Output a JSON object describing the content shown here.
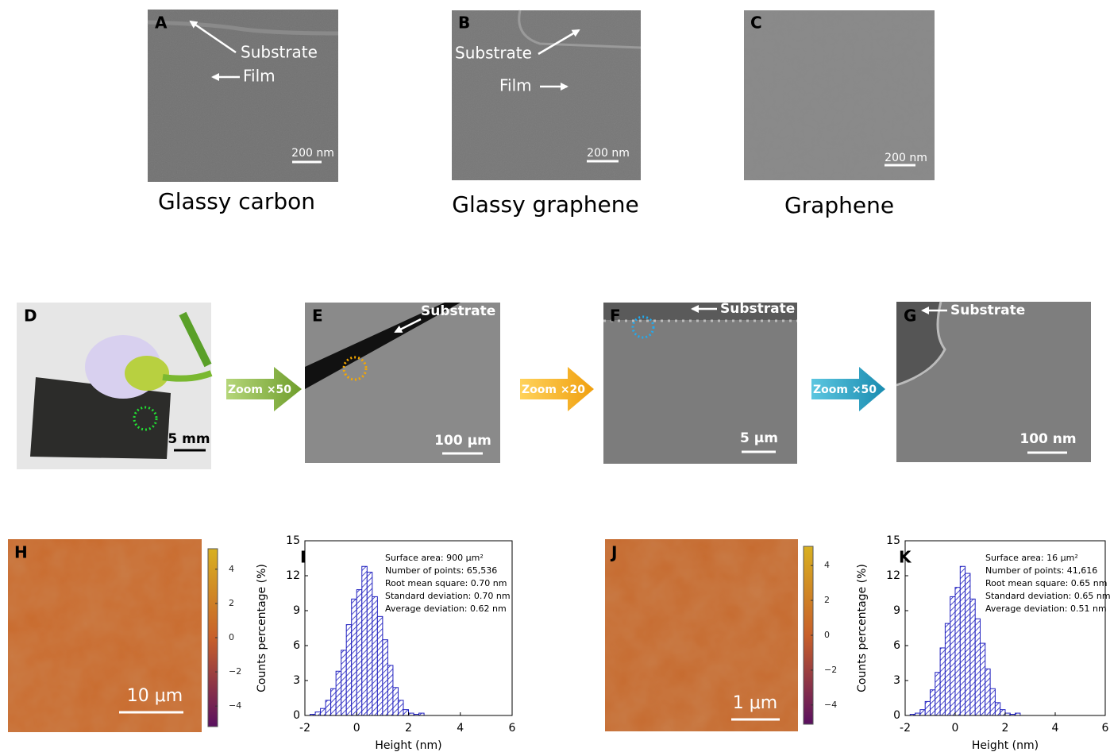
{
  "sem_top": [
    {
      "label": "A",
      "annotations": [
        "Substrate",
        "Film"
      ],
      "scale_bar": "200 nm",
      "caption": "Glassy carbon"
    },
    {
      "label": "B",
      "annotations": [
        "Substrate",
        "Film"
      ],
      "scale_bar": "200 nm",
      "caption": "Glassy graphene"
    },
    {
      "label": "C",
      "scale_bar": "200 nm",
      "caption": "Graphene"
    }
  ],
  "zoom_series": {
    "panels": [
      {
        "label": "D",
        "scale_bar": "5 mm"
      },
      {
        "label": "E",
        "annotation": "Substrate",
        "scale_bar": "100 μm"
      },
      {
        "label": "F",
        "annotation": "Substrate",
        "scale_bar": "5 μm"
      },
      {
        "label": "G",
        "annotation": "Substrate",
        "scale_bar": "100 nm"
      }
    ],
    "zoom_arrows": [
      "Zoom ×50",
      "Zoom ×20",
      "Zoom ×50"
    ]
  },
  "afm_maps": [
    {
      "label": "H",
      "scale_bar": "10 μm",
      "colorbar_range": [
        -5.2,
        5.2
      ],
      "colorbar_ticks": [
        4,
        2,
        0,
        {
          "value": -2,
          "label": "−2"
        },
        {
          "value": -4,
          "label": "−4"
        }
      ]
    },
    {
      "label": "J",
      "scale_bar": "1 μm",
      "colorbar_range": [
        -5.1,
        5.1
      ],
      "colorbar_ticks": [
        4,
        2,
        0,
        {
          "value": -2,
          "label": "−2"
        },
        {
          "value": -4,
          "label": "−4"
        }
      ]
    }
  ],
  "chart_data": [
    {
      "type": "histogram",
      "panel_label": "I",
      "xlabel": "Height (nm)",
      "ylabel": "Counts percentage (%)",
      "annotations": [
        "Surface area: 900 μm²",
        "Number of points: 65,536",
        "Root mean square: 0.70 nm",
        "Standard deviation: 0.70 nm",
        "Average deviation: 0.62 nm"
      ],
      "bins": [
        -1.8,
        -1.6,
        -1.4,
        -1.2,
        -1.0,
        -0.8,
        -0.6,
        -0.4,
        -0.2,
        0,
        0.2,
        0.4,
        0.6,
        0.8,
        1.0,
        1.2,
        1.4,
        1.6,
        1.8,
        2.0,
        2.2,
        2.4,
        2.6
      ],
      "values": [
        0.1,
        0.3,
        0.6,
        1.3,
        2.3,
        3.8,
        5.6,
        7.8,
        10.0,
        10.8,
        12.8,
        12.3,
        10.2,
        8.5,
        6.5,
        4.3,
        2.4,
        1.3,
        0.5,
        0.2,
        0.1,
        0.2
      ],
      "color": "#1f1fbf",
      "xlim": [
        -2,
        6
      ],
      "ylim": [
        0,
        15
      ],
      "xticks": [
        -2,
        0,
        2,
        4,
        6
      ],
      "yticks": [
        0,
        3,
        6,
        9,
        12,
        15
      ]
    },
    {
      "type": "histogram",
      "panel_label": "K",
      "xlabel": "Height (nm)",
      "ylabel": "Counts percentage (%)",
      "annotations": [
        "Surface area: 16 μm²",
        "Number of points: 41,616",
        "Root mean square: 0.65 nm",
        "Standard deviation: 0.65 nm",
        "Average deviation: 0.51 nm"
      ],
      "bins": [
        -1.8,
        -1.6,
        -1.4,
        -1.2,
        -1.0,
        -0.8,
        -0.6,
        -0.4,
        -0.2,
        0,
        0.2,
        0.4,
        0.6,
        0.8,
        1.0,
        1.2,
        1.4,
        1.6,
        1.8,
        2.0,
        2.2,
        2.4,
        2.6
      ],
      "values": [
        0.1,
        0.2,
        0.5,
        1.2,
        2.2,
        3.7,
        5.8,
        7.9,
        10.2,
        11.0,
        12.8,
        12.2,
        10.0,
        8.3,
        6.2,
        4.0,
        2.3,
        1.1,
        0.5,
        0.2,
        0.1,
        0.2
      ],
      "color": "#1f1fbf",
      "xlim": [
        -2,
        6
      ],
      "ylim": [
        0,
        15
      ],
      "xticks": [
        -2,
        0,
        2,
        4,
        6
      ],
      "yticks": [
        0,
        3,
        6,
        9,
        12,
        15
      ]
    }
  ]
}
